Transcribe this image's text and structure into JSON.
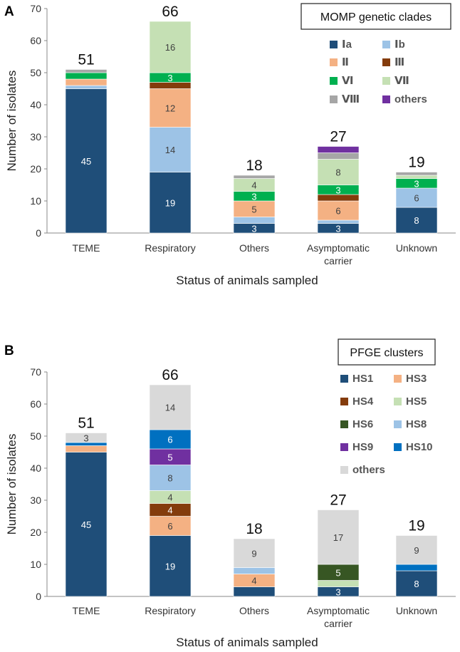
{
  "chart_data": [
    {
      "panel": "A",
      "type": "bar",
      "stacked": true,
      "title": "MOMP genetic clades",
      "xlabel": "Status of animals sampled",
      "ylabel": "Number of isolates",
      "ylim": [
        0,
        70
      ],
      "yticks": [
        "0",
        "10",
        "20",
        "30",
        "40",
        "50",
        "60",
        "70"
      ],
      "categories": [
        "TEME",
        "Respiratory",
        "Others",
        "Asymptomatic carrier",
        "Unknown"
      ],
      "totals": [
        "51",
        "66",
        "18",
        "27",
        "19"
      ],
      "series": [
        {
          "name": "Ⅰa",
          "color": "#1f4e79",
          "values": [
            45,
            19,
            3,
            3,
            8
          ],
          "labels": [
            "45",
            "19",
            "3",
            "3",
            "8"
          ]
        },
        {
          "name": "Ⅰb",
          "color": "#9dc3e6",
          "values": [
            1,
            14,
            2,
            1,
            6
          ],
          "labels": [
            "",
            "14",
            "",
            "",
            "6"
          ]
        },
        {
          "name": "Ⅱ",
          "color": "#f4b183",
          "values": [
            2,
            12,
            5,
            6,
            0
          ],
          "labels": [
            "",
            "12",
            "5",
            "6",
            ""
          ]
        },
        {
          "name": "Ⅲ",
          "color": "#843c0c",
          "values": [
            0,
            2,
            0,
            2,
            0
          ],
          "labels": [
            "",
            "",
            "",
            "",
            ""
          ]
        },
        {
          "name": "Ⅵ",
          "color": "#00b050",
          "values": [
            2,
            3,
            3,
            3,
            3
          ],
          "labels": [
            "",
            "3",
            "3",
            "3",
            "3"
          ]
        },
        {
          "name": "Ⅶ",
          "color": "#c5e0b4",
          "values": [
            0,
            16,
            4,
            8,
            1
          ],
          "labels": [
            "",
            "16",
            "4",
            "8",
            ""
          ]
        },
        {
          "name": "Ⅷ",
          "color": "#a6a6a6",
          "values": [
            1,
            0,
            1,
            2,
            1
          ],
          "labels": [
            "",
            "",
            "",
            "",
            ""
          ]
        },
        {
          "name": "others",
          "color": "#7030a0",
          "values": [
            0,
            0,
            0,
            2,
            0
          ],
          "labels": [
            "",
            "",
            "",
            "",
            ""
          ]
        }
      ]
    },
    {
      "panel": "B",
      "type": "bar",
      "stacked": true,
      "title": "PFGE clusters",
      "xlabel": "Status of animals sampled",
      "ylabel": "Number of isolates",
      "ylim": [
        0,
        70
      ],
      "yticks": [
        "0",
        "10",
        "20",
        "30",
        "40",
        "50",
        "60",
        "70"
      ],
      "categories": [
        "TEME",
        "Respiratory",
        "Others",
        "Asymptomatic carrier",
        "Unknown"
      ],
      "totals": [
        "51",
        "66",
        "18",
        "27",
        "19"
      ],
      "series": [
        {
          "name": "HS1",
          "color": "#1f4e79",
          "values": [
            45,
            19,
            3,
            3,
            8
          ],
          "labels": [
            "45",
            "19",
            "",
            "3",
            "8"
          ]
        },
        {
          "name": "HS3",
          "color": "#f4b183",
          "values": [
            2,
            6,
            4,
            0,
            0
          ],
          "labels": [
            "",
            "6",
            "4",
            "",
            ""
          ]
        },
        {
          "name": "HS4",
          "color": "#843c0c",
          "values": [
            0,
            4,
            0,
            0,
            0
          ],
          "labels": [
            "",
            "4",
            "",
            "",
            ""
          ]
        },
        {
          "name": "HS5",
          "color": "#c5e0b4",
          "values": [
            0,
            4,
            0,
            2,
            0
          ],
          "labels": [
            "",
            "4",
            "",
            "",
            ""
          ]
        },
        {
          "name": "HS6",
          "color": "#375623",
          "values": [
            0,
            0,
            0,
            5,
            0
          ],
          "labels": [
            "",
            "",
            "",
            "5",
            ""
          ]
        },
        {
          "name": "HS8",
          "color": "#9dc3e6",
          "values": [
            0,
            8,
            2,
            0,
            0
          ],
          "labels": [
            "",
            "8",
            "",
            "",
            ""
          ]
        },
        {
          "name": "HS9",
          "color": "#7030a0",
          "values": [
            0,
            5,
            0,
            0,
            0
          ],
          "labels": [
            "",
            "5",
            "",
            "",
            ""
          ]
        },
        {
          "name": "HS10",
          "color": "#0070c0",
          "values": [
            1,
            6,
            0,
            0,
            2
          ],
          "labels": [
            "",
            "6",
            "",
            "",
            ""
          ]
        },
        {
          "name": "others",
          "color": "#d9d9d9",
          "values": [
            3,
            14,
            9,
            17,
            9
          ],
          "labels": [
            "3",
            "14",
            "9",
            "17",
            "9"
          ]
        }
      ]
    }
  ]
}
